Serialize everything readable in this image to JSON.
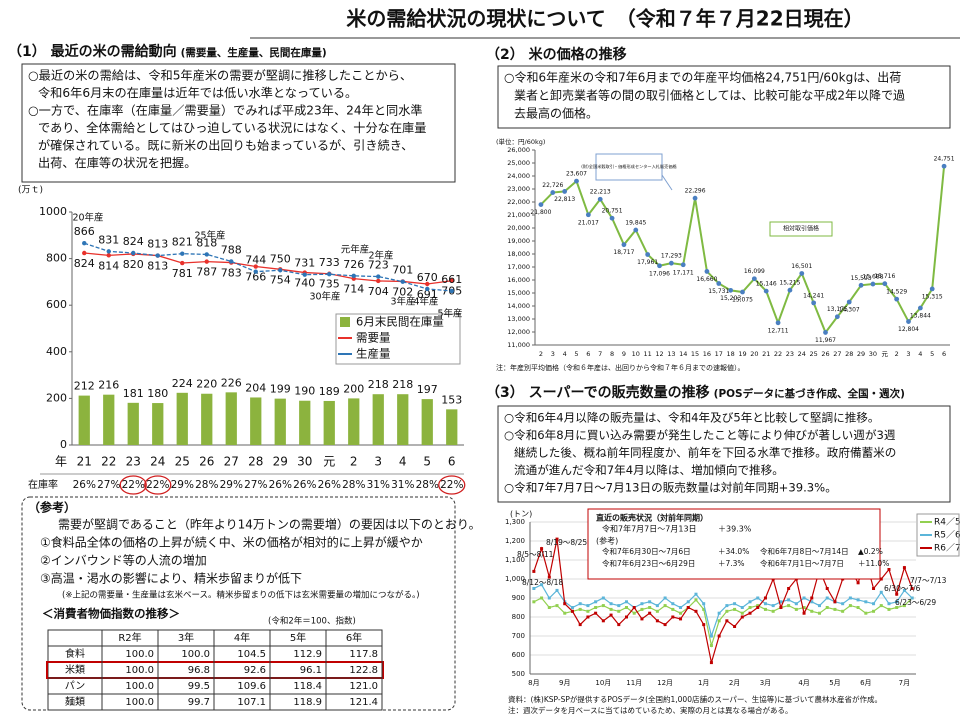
{
  "title": "米の需給状況の現状について　（令和７年７月22日現在）",
  "section1": {
    "heading": "（1） 最近の米の需給動向",
    "subheading": "(需要量、生産量、民間在庫量)",
    "bullets": [
      [
        "○最近の米の需給は、令和5年産米の需要が堅調に推移したことから、",
        "令和6年6月末の在庫量は近年では低い水準となっている。"
      ],
      [
        "○一方で、在庫率（在庫量／需要量）でみれば平成23年、24年と同水準",
        "であり、全体需給としてはひっ迫している状況にはなく、十分な在庫量",
        "が確保されている。既に新米の出回りも始まっているが、引き続き、",
        "出荷、在庫等の状況を把握。"
      ]
    ]
  },
  "section2": {
    "heading": "（2） 米の価格の推移",
    "bullets": [
      [
        "○令和6年産米の令和7年6月までの年産平均価格24,751円/60kgは、出荷",
        "業者と卸売業者等の間の取引価格としては、比較可能な平成2年以降で過",
        "去最高の価格。"
      ]
    ]
  },
  "section3": {
    "heading": "（3） スーパーでの販売数量の推移",
    "subheading": "(POSデータに基づき作成、全国・週次)",
    "bullets": [
      [
        "○令和6年4月以降の販売量は、令和4年及び5年と比較して堅調に推移。"
      ],
      [
        "○令和6年8月に買い込み需要が発生したこと等により伸びが著しい週が3週",
        "継続した後、概ね前年同程度か、前年を下回る水準で推移。政府備蓄米の",
        "流通が進んだ令和7年4月以降は、増加傾向で推移。"
      ],
      [
        "○令和7年7月7日～7月13日の販売数量は対前年同期+39.3%。"
      ]
    ]
  },
  "reference": {
    "heading": "（参考）",
    "lines": [
      "需要が堅調であること（昨年より14万トンの需要増）の要因は以下のとおり。",
      "①食料品全体の価格の上昇が続く中、米の価格が相対的に上昇が緩やか",
      "②インバウンド等の人流の増加",
      "③高温・渇水の影響により、精米歩留まりが低下"
    ],
    "note": "(※上記の需要量・生産量は玄米ベース。精米歩留まりの低下は玄米需要量の増加につながる。)",
    "table": {
      "title": "＜消費者物価指数の推移＞",
      "note": "(令和2年＝100、指数)",
      "header": [
        "R2年",
        "3年",
        "4年",
        "5年",
        "6年"
      ],
      "rows": [
        {
          "label": "食料",
          "values": [
            "100.0",
            "100.0",
            "104.5",
            "112.9",
            "117.8"
          ]
        },
        {
          "label": "米類",
          "values": [
            "100.0",
            "96.8",
            "92.6",
            "96.1",
            "122.8"
          ]
        },
        {
          "label": "パン",
          "values": [
            "100.0",
            "99.5",
            "109.6",
            "118.4",
            "121.0"
          ]
        },
        {
          "label": "麺類",
          "values": [
            "100.0",
            "99.7",
            "107.1",
            "118.9",
            "121.4"
          ]
        }
      ]
    }
  },
  "chart_data": [
    {
      "type": "combo",
      "unit_label": "(万ｔ)",
      "x_label": "年",
      "categories": [
        "21",
        "22",
        "23",
        "24",
        "25",
        "26",
        "27",
        "28",
        "29",
        "30",
        "元",
        "2",
        "3",
        "4",
        "5",
        "6"
      ],
      "series": [
        {
          "name": "6月末民間在庫量",
          "type": "bar",
          "color": "#8cb33e",
          "values": [
            212,
            216,
            181,
            180,
            224,
            220,
            226,
            204,
            199,
            190,
            189,
            200,
            218,
            218,
            197,
            153
          ]
        },
        {
          "name": "需要量",
          "type": "line",
          "color": "#e8312b",
          "values": [
            824,
            814,
            820,
            813,
            781,
            787,
            783,
            766,
            754,
            740,
            735,
            714,
            704,
            702,
            691,
            705
          ]
        },
        {
          "name": "生産量",
          "type": "line",
          "color": "#2e75b6",
          "values": [
            866,
            831,
            824,
            813,
            821,
            818,
            788,
            744,
            750,
            731,
            733,
            726,
            723,
            701,
            670,
            661
          ]
        }
      ],
      "ylim": [
        0,
        1000
      ],
      "yticks": [
        0,
        200,
        400,
        600,
        800,
        1000
      ],
      "grid": false,
      "legend": "right",
      "annotations": [
        "20年産",
        "25年産",
        "元年産",
        "2年産",
        "30年産",
        "3年産",
        "4年産",
        "5年産"
      ],
      "stock_ratio": {
        "label": "在庫率",
        "values": [
          "26%",
          "27%",
          "22%",
          "22%",
          "29%",
          "28%",
          "29%",
          "27%",
          "26%",
          "26%",
          "26%",
          "28%",
          "31%",
          "31%",
          "28%",
          "22%"
        ]
      }
    },
    {
      "type": "line",
      "unit_label": "(単位：円/60kg)",
      "color": "#7fba42",
      "marker_color": "#4a7fc1",
      "categories": [
        "2",
        "3",
        "4",
        "5",
        "6",
        "7",
        "8",
        "9",
        "10",
        "11",
        "12",
        "13",
        "14",
        "15",
        "16",
        "17",
        "18",
        "19",
        "20",
        "21",
        "22",
        "23",
        "24",
        "25",
        "26",
        "27",
        "28",
        "29",
        "30",
        "元",
        "2",
        "3",
        "4",
        "5",
        "6"
      ],
      "values": [
        21800,
        22726,
        22813,
        23607,
        21017,
        22213,
        20751,
        18717,
        19845,
        17961,
        17096,
        17293,
        17171,
        22296,
        16660,
        15731,
        15203,
        15075,
        16099,
        15146,
        12711,
        15215,
        16501,
        14241,
        11967,
        13175,
        14307,
        15593,
        15688,
        15716,
        14529,
        12804,
        13844,
        15315,
        24751
      ],
      "value_labels": [
        "21,800",
        "22,726",
        "22,813",
        "23,607",
        "21,017",
        "22,213",
        "20,751",
        "18,717",
        "19,845",
        "17,961",
        "17,096",
        "17,293",
        "17,171",
        "22,296",
        "16,660",
        "15,731",
        "15,203",
        "15,075",
        "16,099",
        "15,146",
        "12,711",
        "15,215",
        "16,501",
        "14,241",
        "11,967",
        "13,175",
        "14,307",
        "15,593",
        "15,688",
        "15,716",
        "14,529",
        "12,804",
        "13,844",
        "15,315",
        "24,751"
      ],
      "ylim": [
        11000,
        26000
      ],
      "yticks": [
        {
          "value": 11000,
          "label": "11,000"
        },
        {
          "value": 12000,
          "label": "12,000"
        },
        {
          "value": 13000,
          "label": "13,000"
        },
        {
          "value": 14000,
          "label": "14,000"
        },
        {
          "value": 15000,
          "label": "15,000"
        },
        {
          "value": 16000,
          "label": "16,000"
        },
        {
          "value": 17000,
          "label": "17,000"
        },
        {
          "value": 18000,
          "label": "18,000"
        },
        {
          "value": 19000,
          "label": "19,000"
        },
        {
          "value": 20000,
          "label": "20,000"
        },
        {
          "value": 21000,
          "label": "21,000"
        },
        {
          "value": 22000,
          "label": "22,000"
        },
        {
          "value": 23000,
          "label": "23,000"
        },
        {
          "value": 24000,
          "label": "24,000"
        },
        {
          "value": 25000,
          "label": "25,000"
        },
        {
          "value": 26000,
          "label": "26,000"
        }
      ],
      "grid": false,
      "annotations": [
        "(財)全国米穀取引・価格形成センター入札販売価格",
        "相対取引価格"
      ],
      "footnote": "注：年産別平均価格（令和６年産は、出回りから令和７年６月までの速報値）。"
    },
    {
      "type": "line",
      "unit_label": "(トン)",
      "categories": [
        "8月",
        null,
        null,
        null,
        "9月",
        null,
        null,
        null,
        null,
        "10月",
        null,
        null,
        null,
        "11月",
        null,
        null,
        null,
        "12月",
        null,
        null,
        null,
        null,
        "1月",
        null,
        null,
        null,
        "2月",
        null,
        null,
        null,
        "3月",
        null,
        null,
        null,
        null,
        "4月",
        null,
        null,
        null,
        "5月",
        null,
        null,
        null,
        "6月",
        null,
        null,
        null,
        null,
        "7月",
        null
      ],
      "series": [
        {
          "name": "R4／5",
          "color": "#92d050",
          "values": [
            880,
            900,
            850,
            860,
            820,
            830,
            840,
            830,
            850,
            860,
            840,
            830,
            850,
            820,
            840,
            850,
            830,
            860,
            840,
            820,
            850,
            890,
            840,
            650,
            780,
            830,
            840,
            820,
            850,
            860,
            840,
            830,
            850,
            860,
            840,
            850,
            830,
            820,
            850,
            840,
            830,
            860,
            850,
            820,
            830,
            860,
            840,
            850,
            860,
            900
          ]
        },
        {
          "name": "R5／6",
          "color": "#5bb5d9",
          "values": [
            950,
            970,
            900,
            940,
            880,
            850,
            870,
            860,
            880,
            900,
            870,
            860,
            880,
            850,
            870,
            880,
            860,
            900,
            870,
            850,
            880,
            920,
            870,
            700,
            820,
            860,
            870,
            850,
            880,
            900,
            870,
            860,
            880,
            890,
            870,
            900,
            880,
            860,
            900,
            880,
            870,
            900,
            890,
            880,
            870,
            930,
            870,
            880,
            940,
            900
          ]
        },
        {
          "name": "R6／7",
          "color": "#c00000",
          "values": [
            1040,
            1160,
            1010,
            1210,
            870,
            830,
            760,
            800,
            820,
            780,
            810,
            760,
            800,
            850,
            790,
            820,
            780,
            760,
            800,
            790,
            850,
            830,
            760,
            560,
            700,
            780,
            750,
            800,
            820,
            850,
            900,
            1000,
            850,
            950,
            1000,
            820,
            900,
            1050,
            950,
            880,
            1000,
            1050,
            980,
            1100,
            950,
            1000,
            1050,
            920,
            1060,
            950
          ]
        }
      ],
      "ylim": [
        500,
        1300
      ],
      "yticks": [
        500,
        600,
        700,
        800,
        900,
        {
          "value": 1000,
          "label": "1,000"
        },
        {
          "value": 1100,
          "label": "1,100"
        },
        {
          "value": 1200,
          "label": "1,200"
        },
        {
          "value": 1300,
          "label": "1,300"
        }
      ],
      "grid": true,
      "legend": "right",
      "annotations": [
        "8/5～8/11",
        "8/19～8/25",
        "8/12～8/18",
        "6/30～7/6",
        "7/7～7/13",
        "6/23～6/29"
      ],
      "inset": {
        "title": "直近の販売状況（対前年同期）",
        "latest": [
          "令和7年7月7日～7月13日",
          "＋39.3%"
        ],
        "reference_label": "(参考)",
        "reference": [
          [
            "令和7年6月30日～7月6日",
            "＋34.0%",
            "令和6年7月8日～7月14日",
            "▲0.2%"
          ],
          [
            "令和7年6月23日～6月29日",
            "＋7.3%",
            "令和6年7月1日～7月7日",
            "＋11.0%"
          ]
        ]
      },
      "footnote": [
        "資料：(株)KSP-SPが提供するPOSデータ(全国約1,000店舗のスーパー、生協等)に基づいて農林水産省が作成。",
        "注：週次データを月ベースに当てはめているため、実際の月とは異なる場合がある。"
      ]
    }
  ]
}
